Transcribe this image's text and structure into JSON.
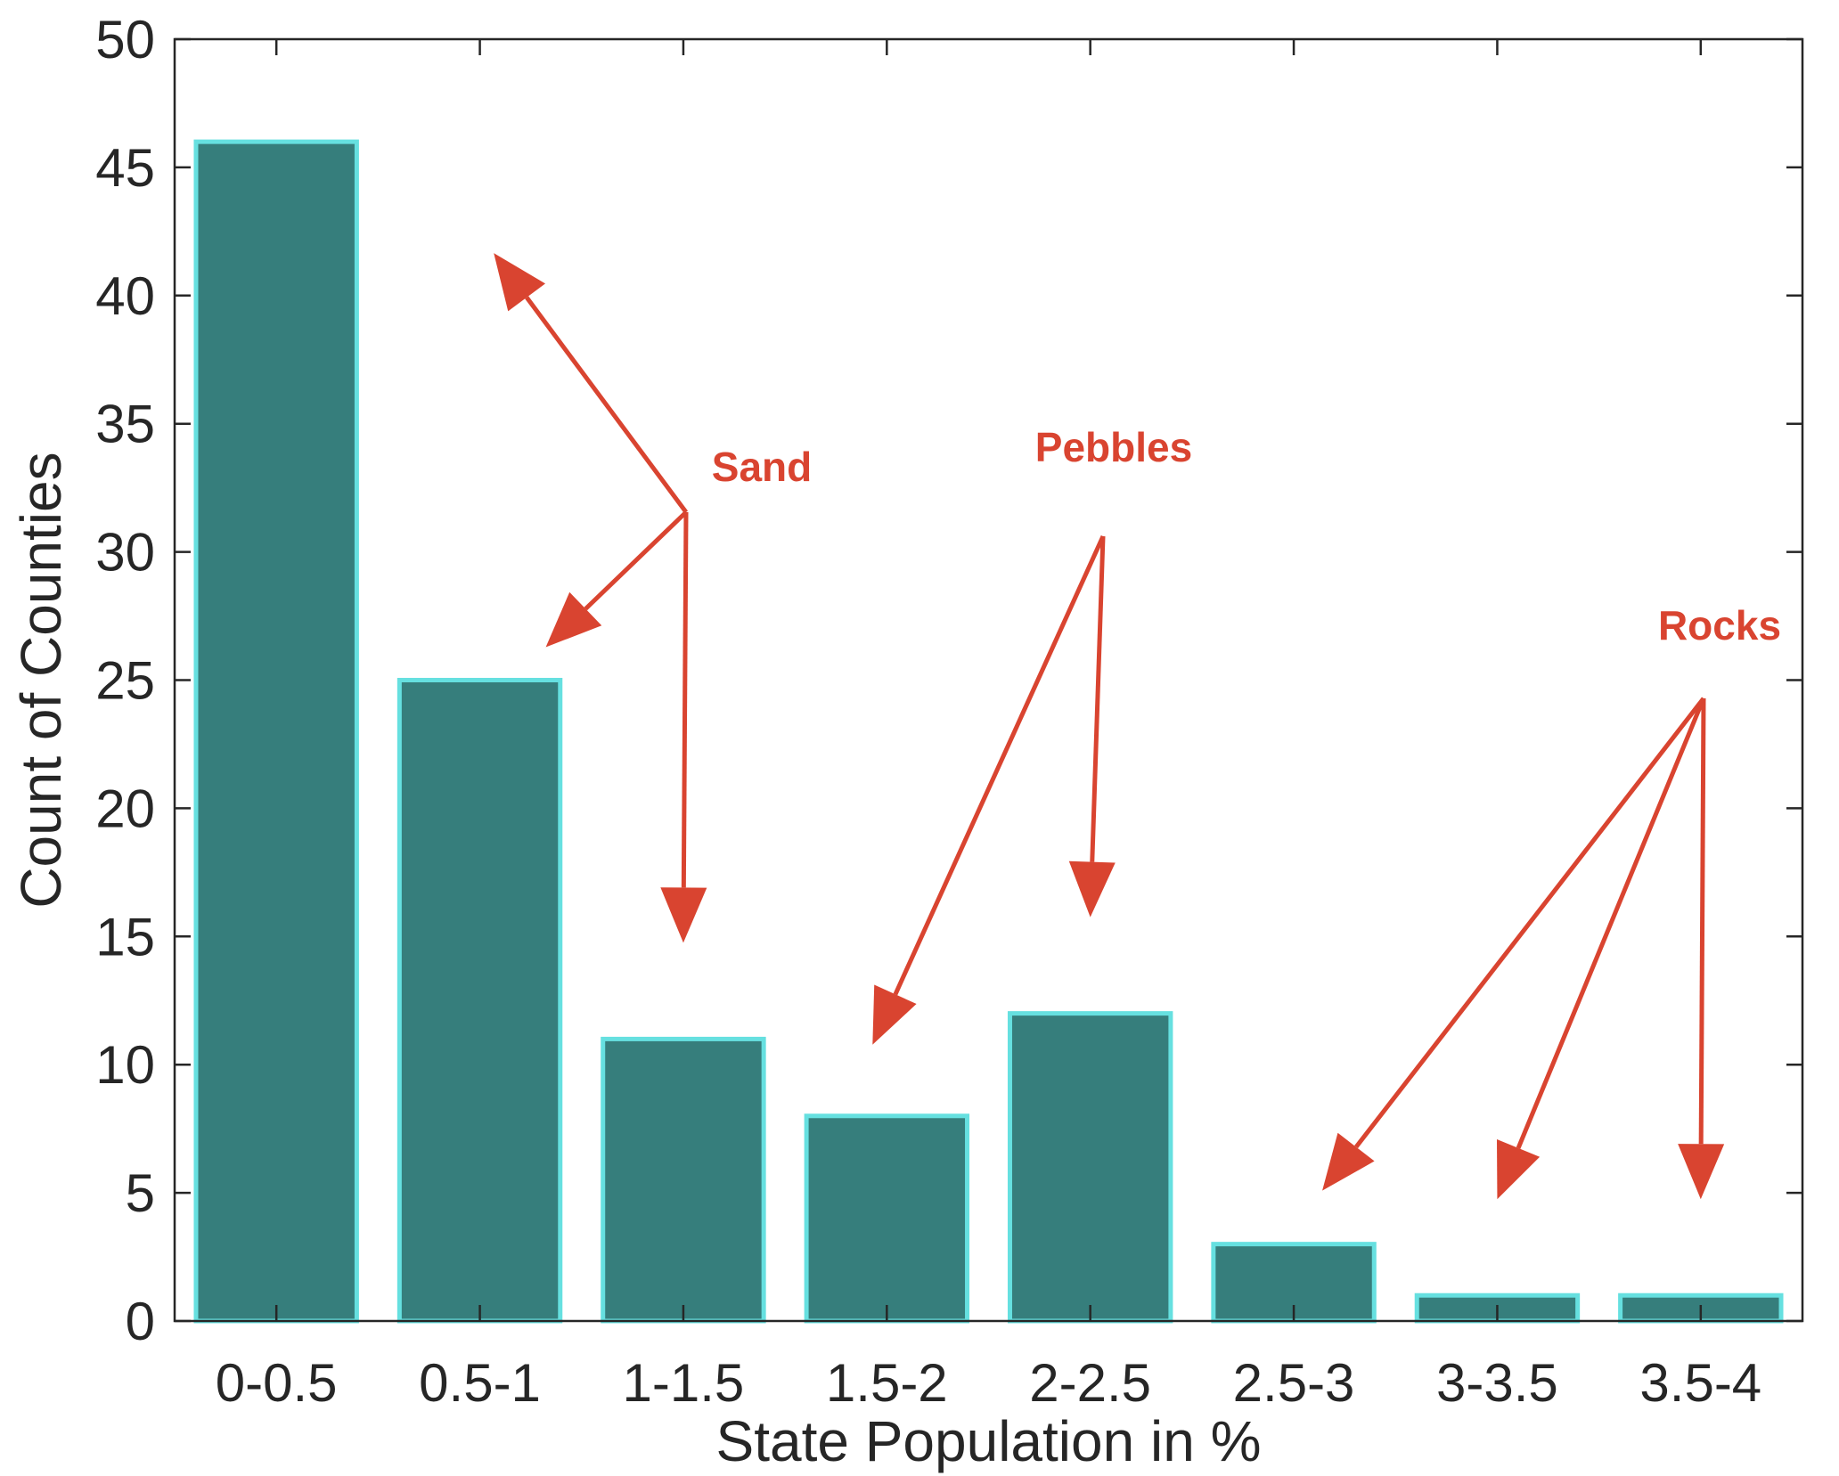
{
  "chart_data": {
    "type": "bar",
    "title": "",
    "xlabel": "State Population in %",
    "ylabel": "Count of Counties",
    "categories": [
      "0-0.5",
      "0.5-1",
      "1-1.5",
      "1.5-2",
      "2-2.5",
      "2.5-3",
      "3-3.5",
      "3.5-4"
    ],
    "values": [
      46,
      25,
      11,
      8,
      12,
      3,
      1,
      1
    ],
    "ylim": [
      0,
      50
    ],
    "yticks": [
      "0",
      "5",
      "10",
      "15",
      "20",
      "25",
      "30",
      "35",
      "40",
      "45",
      "50"
    ],
    "grid": false,
    "bar_color": "#367e7c",
    "bar_edge_color": "#66e0e0",
    "annotation_color": "#d94430",
    "annotations": [
      {
        "text": "Sand",
        "targets": [
          "0-0.5",
          "0.5-1",
          "1-1.5"
        ]
      },
      {
        "text": "Pebbles",
        "targets": [
          "1.5-2",
          "2-2.5"
        ]
      },
      {
        "text": "Rocks",
        "targets": [
          "2.5-3",
          "3-3.5",
          "3.5-4"
        ]
      }
    ]
  }
}
